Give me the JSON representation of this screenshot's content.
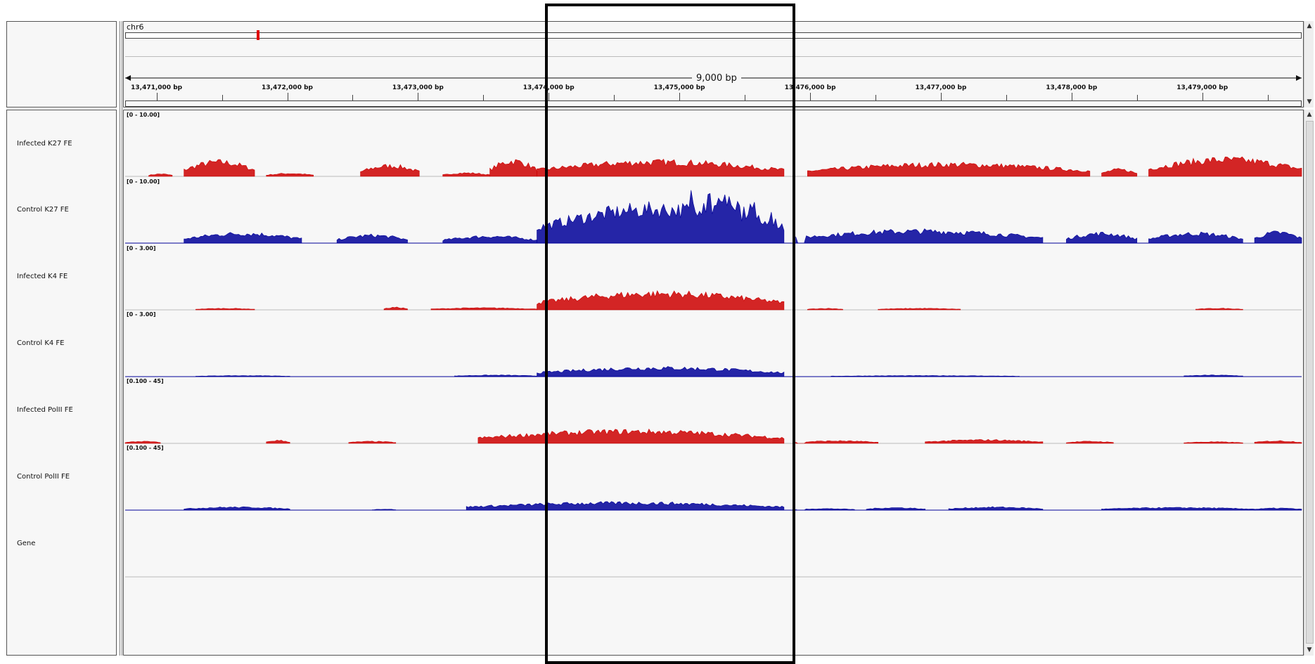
{
  "header": {
    "chromosome": "chr6",
    "span_label": "9,000 bp",
    "ticks": [
      {
        "label": "13,471,000 bp",
        "pos": 13471000
      },
      {
        "label": "13,472,000 bp",
        "pos": 13472000
      },
      {
        "label": "13,473,000 bp",
        "pos": 13473000
      },
      {
        "label": "13,474,000 bp",
        "pos": 13474000
      },
      {
        "label": "13,475,000 bp",
        "pos": 13475000
      },
      {
        "label": "13,476,000 bp",
        "pos": 13476000
      },
      {
        "label": "13,477,000 bp",
        "pos": 13477000
      },
      {
        "label": "13,478,000 bp",
        "pos": 13478000
      },
      {
        "label": "13,479,000 bp",
        "pos": 13479000
      }
    ],
    "locus_start": 13470760,
    "locus_end": 13479760
  },
  "tracks": [
    {
      "name": "Infected K27 FE",
      "range": "[0 - 10.00]",
      "color": "#cc0000"
    },
    {
      "name": "Control K27 FE",
      "range": "[0 - 10.00]",
      "color": "#000099"
    },
    {
      "name": "Infected K4 FE",
      "range": "[0 - 3.00]",
      "color": "#cc0000"
    },
    {
      "name": "Control K4 FE",
      "range": "[0 - 3.00]",
      "color": "#000099"
    },
    {
      "name": "Infected PolII FE",
      "range": "[0.100 - 45]",
      "color": "#cc0000"
    },
    {
      "name": "Control PolII FE",
      "range": "[0.100 - 45]",
      "color": "#000099"
    },
    {
      "name": "Gene",
      "range": "",
      "color": "#000000"
    }
  ],
  "highlight": {
    "start": 13474000,
    "end": 13475870
  },
  "colors": {
    "red": "#cc0000",
    "blue": "#000099",
    "panel_bg": "#f7f7f7"
  }
}
